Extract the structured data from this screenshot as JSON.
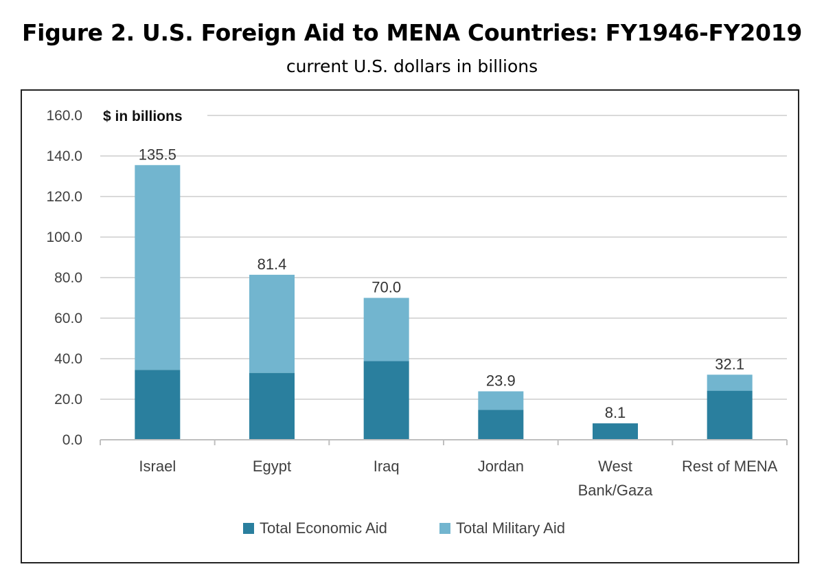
{
  "figure": {
    "title": "Figure 2. U.S. Foreign Aid to MENA Countries: FY1946-FY2019",
    "subtitle": "current U.S. dollars in billions"
  },
  "colors": {
    "economic": "#2a7f9e",
    "military": "#72b5cf",
    "grid": "#d9d9d9",
    "axis": "#bfbfbf"
  },
  "chart_data": {
    "type": "bar",
    "stacked": true,
    "units_label": "$ in billions",
    "categories": [
      [
        "Israel"
      ],
      [
        "Egypt"
      ],
      [
        "Iraq"
      ],
      [
        "Jordan"
      ],
      [
        "West",
        "Bank/Gaza"
      ],
      [
        "Rest of MENA"
      ]
    ],
    "series": [
      {
        "name": "Total Economic Aid",
        "color": "#2a7f9e",
        "values": [
          34.5,
          33.0,
          38.8,
          14.8,
          8.1,
          24.2
        ]
      },
      {
        "name": "Total Military Aid",
        "color": "#72b5cf",
        "values": [
          101.0,
          48.4,
          31.2,
          9.1,
          0.0,
          7.9
        ]
      }
    ],
    "totals": [
      135.5,
      81.4,
      70.0,
      23.9,
      8.1,
      32.1
    ],
    "total_labels": [
      "135.5",
      "81.4",
      "70.0",
      "23.9",
      "8.1",
      "32.1"
    ],
    "y_ticks": [
      "0.0",
      "20.0",
      "40.0",
      "60.0",
      "80.0",
      "100.0",
      "120.0",
      "140.0",
      "160.0"
    ],
    "ylim": [
      0,
      160
    ],
    "grid": true,
    "legend": "bottom-center"
  }
}
